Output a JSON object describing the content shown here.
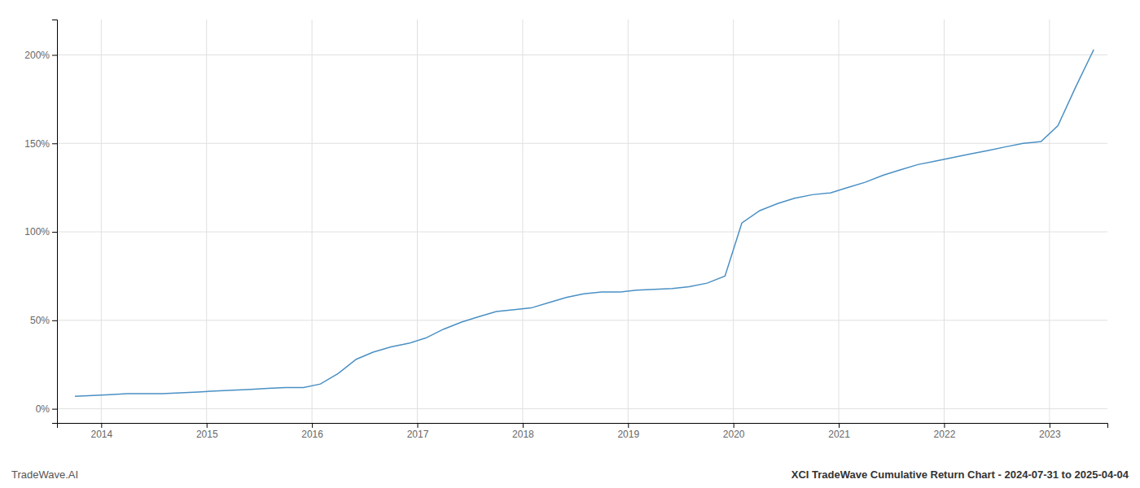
{
  "chart_data": {
    "type": "line",
    "title": "XCI TradeWave Cumulative Return Chart - 2024-07-31 to 2025-04-04",
    "subtitle": "TradeWave.AI",
    "color": "#4a90c4",
    "x": [
      2013.75,
      2013.92,
      2014.08,
      2014.25,
      2014.42,
      2014.58,
      2014.75,
      2014.92,
      2015.08,
      2015.25,
      2015.42,
      2015.58,
      2015.75,
      2015.92,
      2016.08,
      2016.25,
      2016.42,
      2016.58,
      2016.75,
      2016.92,
      2017.08,
      2017.25,
      2017.42,
      2017.58,
      2017.75,
      2017.92,
      2018.08,
      2018.25,
      2018.42,
      2018.58,
      2018.75,
      2018.92,
      2019.08,
      2019.25,
      2019.42,
      2019.58,
      2019.75,
      2019.92,
      2020.08,
      2020.25,
      2020.42,
      2020.58,
      2020.75,
      2020.92,
      2021.08,
      2021.25,
      2021.42,
      2021.58,
      2021.75,
      2021.92,
      2022.08,
      2022.25,
      2022.42,
      2022.58,
      2022.75,
      2022.92,
      2023.08,
      2023.25,
      2023.42
    ],
    "values": [
      7,
      7.5,
      8,
      8.5,
      8.5,
      8.5,
      9,
      9.5,
      10,
      10.5,
      11,
      11.5,
      12,
      12,
      14,
      20,
      28,
      32,
      35,
      37,
      40,
      45,
      49,
      52,
      55,
      56,
      57,
      60,
      63,
      65,
      66,
      66,
      67,
      67.5,
      68,
      69,
      71,
      75,
      105,
      112,
      116,
      119,
      121,
      122,
      125,
      128,
      132,
      135,
      138,
      140,
      142,
      144,
      146,
      148,
      150,
      151,
      160,
      182,
      203
    ],
    "xlim": [
      2013.58,
      2023.55
    ],
    "xticks": [
      2014,
      2015,
      2016,
      2017,
      2018,
      2019,
      2020,
      2021,
      2022,
      2023
    ],
    "ylim": [
      -8,
      220
    ],
    "yticks": [
      {
        "value": 0,
        "label": "0%"
      },
      {
        "value": 50,
        "label": "50%"
      },
      {
        "value": 100,
        "label": "100%"
      },
      {
        "value": 150,
        "label": "150%"
      },
      {
        "value": 200,
        "label": "200%"
      }
    ],
    "grid": true
  }
}
